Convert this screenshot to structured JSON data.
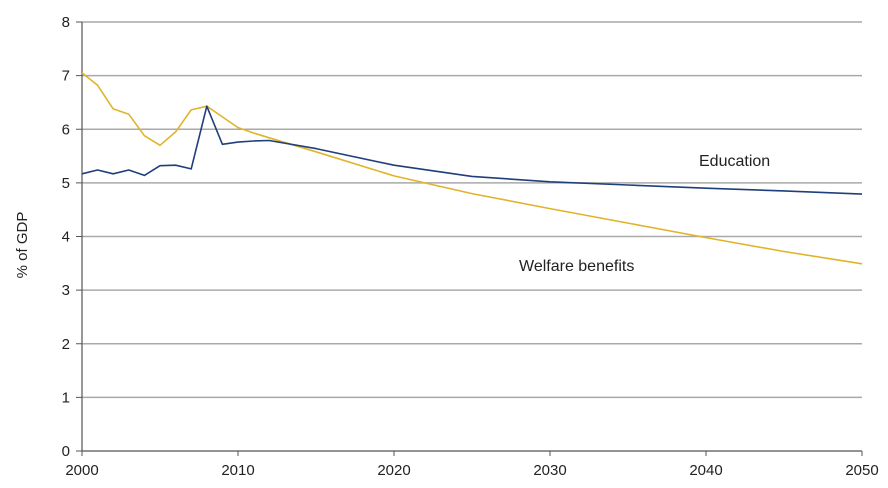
{
  "chart_data": {
    "type": "line",
    "ylabel": "% of GDP",
    "xlabel": "",
    "xlim": [
      2000,
      2050
    ],
    "ylim": [
      0,
      8
    ],
    "x_ticks": [
      2000,
      2010,
      2020,
      2030,
      2040,
      2050
    ],
    "y_ticks": [
      0,
      1,
      2,
      3,
      4,
      5,
      6,
      7,
      8
    ],
    "grid": "horizontal",
    "legend": "none (inline series labels)",
    "series": [
      {
        "name": "Education",
        "color": "#1f3f7a",
        "points": [
          [
            2000,
            5.17
          ],
          [
            2001,
            5.24
          ],
          [
            2002,
            5.17
          ],
          [
            2003,
            5.24
          ],
          [
            2004,
            5.14
          ],
          [
            2005,
            5.32
          ],
          [
            2006,
            5.33
          ],
          [
            2007,
            5.26
          ],
          [
            2008,
            6.43
          ],
          [
            2009,
            5.72
          ],
          [
            2010,
            5.76
          ],
          [
            2011,
            5.78
          ],
          [
            2012,
            5.79
          ],
          [
            2015,
            5.64
          ],
          [
            2020,
            5.33
          ],
          [
            2025,
            5.12
          ],
          [
            2030,
            5.02
          ],
          [
            2035,
            4.96
          ],
          [
            2040,
            4.9
          ],
          [
            2045,
            4.85
          ],
          [
            2050,
            4.79
          ]
        ]
      },
      {
        "name": "Welfare benefits",
        "color": "#e0b42a",
        "points": [
          [
            2000,
            7.05
          ],
          [
            2001,
            6.82
          ],
          [
            2002,
            6.38
          ],
          [
            2003,
            6.28
          ],
          [
            2004,
            5.88
          ],
          [
            2005,
            5.7
          ],
          [
            2006,
            5.95
          ],
          [
            2007,
            6.36
          ],
          [
            2008,
            6.43
          ],
          [
            2009,
            6.23
          ],
          [
            2010,
            6.03
          ],
          [
            2011,
            5.93
          ],
          [
            2012,
            5.84
          ],
          [
            2015,
            5.58
          ],
          [
            2020,
            5.13
          ],
          [
            2025,
            4.8
          ],
          [
            2030,
            4.52
          ],
          [
            2035,
            4.25
          ],
          [
            2040,
            3.98
          ],
          [
            2045,
            3.72
          ],
          [
            2050,
            3.49
          ]
        ]
      }
    ],
    "annotations": [
      {
        "text": "Education",
        "series": "Education"
      },
      {
        "text": "Welfare benefits",
        "series": "Welfare benefits"
      }
    ]
  }
}
